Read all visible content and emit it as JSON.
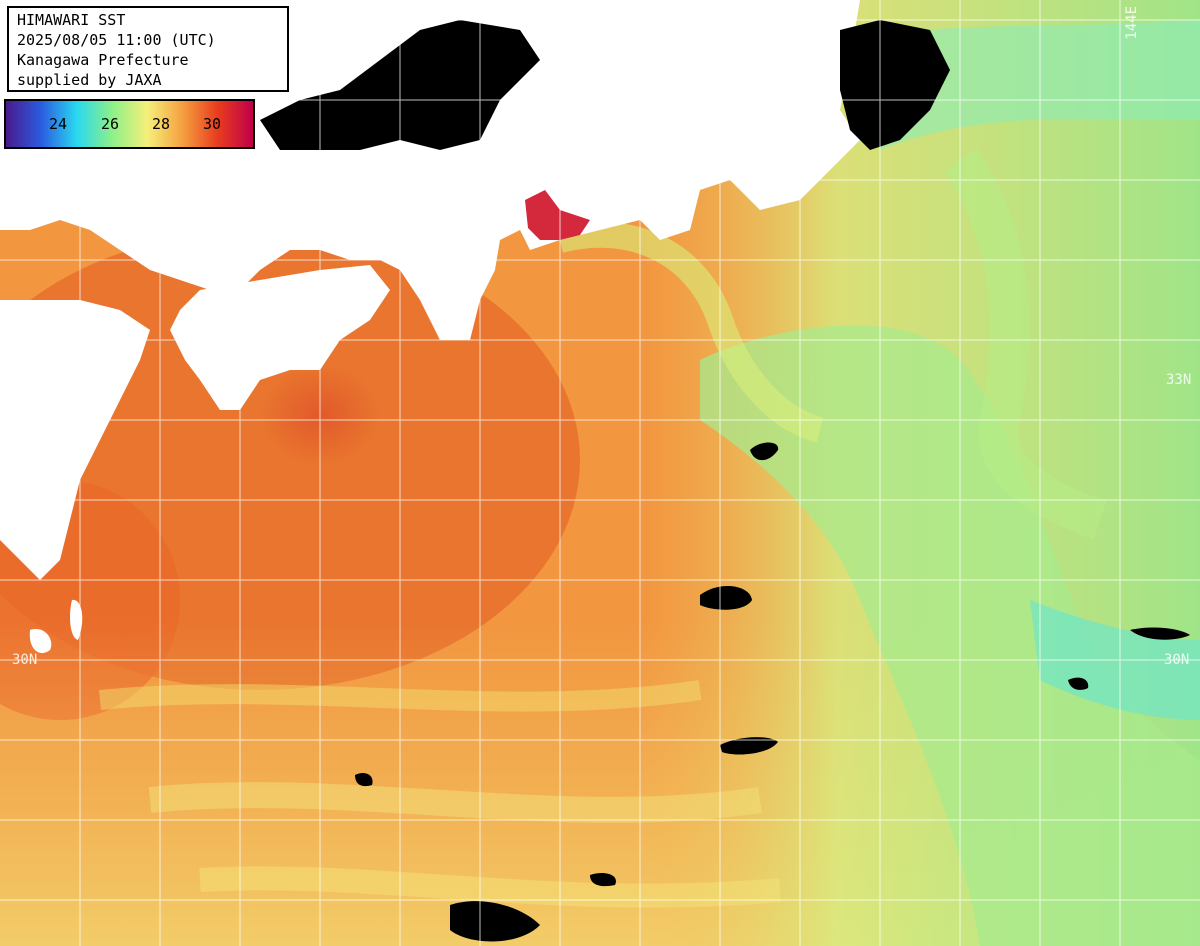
{
  "header": {
    "title": "HIMAWARI SST",
    "datetime": "2025/08/05 11:00 (UTC)",
    "region": "Kanagawa Prefecture",
    "credit": "supplied by JAXA"
  },
  "legend": {
    "ticks": [
      "24",
      "26",
      "28",
      "30"
    ],
    "colors": [
      "#4a1a8c",
      "#2a5ce0",
      "#29d8f0",
      "#8cf08a",
      "#f5f07a",
      "#f5a040",
      "#e83c1e",
      "#c0004a"
    ]
  },
  "graticule": {
    "lat_labels": [
      "33N",
      "33N",
      "30N",
      "30N"
    ],
    "lon_labels": [
      "144E"
    ]
  },
  "colors": {
    "land": "#ffffff",
    "no_data": "#000000",
    "warm": "#f08a34",
    "hot": "#e86a28",
    "yellow": "#f2e67a",
    "green": "#a4ec8a",
    "cyan": "#70e8c4"
  }
}
